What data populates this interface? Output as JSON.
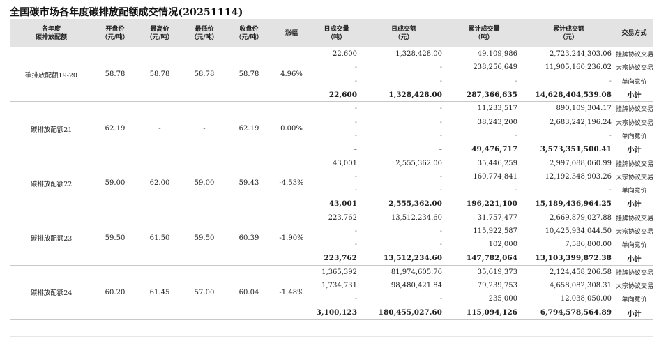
{
  "title": "全国碳市场各年度碳排放配额成交情况(20251114)",
  "headers": [
    [
      "各年度",
      "碳排放配额"
    ],
    [
      "开盘价",
      "（元/吨）"
    ],
    [
      "最高价",
      "（元/吨）"
    ],
    [
      "最低价",
      "（元/吨）"
    ],
    [
      "收盘价",
      "（元/吨）"
    ],
    [
      "涨幅"
    ],
    [
      "日成交量",
      "（吨）"
    ],
    [
      "日成交额",
      "（元）"
    ],
    [
      "累计成交量",
      "（吨）"
    ],
    [
      "累计成交额",
      "（元）"
    ],
    [
      "交易方式"
    ]
  ],
  "groups": [
    {
      "name": "碳排放配额19-20",
      "open": "58.78",
      "high": "58.78",
      "low": "58.78",
      "close": "58.78",
      "change": "4.96%",
      "rows": [
        {
          "vol": "22,600",
          "amt": "1,328,428.00",
          "cvol": "49,109,986",
          "camt": "2,723,244,303.06",
          "mode": "挂牌协议交易"
        },
        {
          "vol": "-",
          "amt": "-",
          "cvol": "238,256,649",
          "camt": "11,905,160,236.02",
          "mode": "大宗协议交易"
        },
        {
          "vol": "-",
          "amt": "-",
          "cvol": "-",
          "camt": "-",
          "mode": "单向竞价"
        },
        {
          "vol": "22,600",
          "amt": "1,328,428.00",
          "cvol": "287,366,635",
          "camt": "14,628,404,539.08",
          "mode": "小计"
        }
      ]
    },
    {
      "name": "碳排放配额21",
      "open": "62.19",
      "high": "-",
      "low": "-",
      "close": "62.19",
      "change": "0.00%",
      "rows": [
        {
          "vol": "-",
          "amt": "-",
          "cvol": "11,233,517",
          "camt": "890,109,304.17",
          "mode": "挂牌协议交易"
        },
        {
          "vol": "-",
          "amt": "-",
          "cvol": "38,243,200",
          "camt": "2,683,242,196.24",
          "mode": "大宗协议交易"
        },
        {
          "vol": "-",
          "amt": "-",
          "cvol": "-",
          "camt": "-",
          "mode": "单向竞价"
        },
        {
          "vol": "-",
          "amt": "-",
          "cvol": "49,476,717",
          "camt": "3,573,351,500.41",
          "mode": "小计"
        }
      ]
    },
    {
      "name": "碳排放配额22",
      "open": "59.00",
      "high": "62.00",
      "low": "59.00",
      "close": "59.43",
      "change": "-4.53%",
      "rows": [
        {
          "vol": "43,001",
          "amt": "2,555,362.00",
          "cvol": "35,446,259",
          "camt": "2,997,088,060.99",
          "mode": "挂牌协议交易"
        },
        {
          "vol": "-",
          "amt": "-",
          "cvol": "160,774,841",
          "camt": "12,192,348,903.26",
          "mode": "大宗协议交易"
        },
        {
          "vol": "-",
          "amt": "-",
          "cvol": "-",
          "camt": "-",
          "mode": "单向竞价"
        },
        {
          "vol": "43,001",
          "amt": "2,555,362.00",
          "cvol": "196,221,100",
          "camt": "15,189,436,964.25",
          "mode": "小计"
        }
      ]
    },
    {
      "name": "碳排放配额23",
      "open": "59.50",
      "high": "61.50",
      "low": "59.50",
      "close": "60.39",
      "change": "-1.90%",
      "rows": [
        {
          "vol": "223,762",
          "amt": "13,512,234.60",
          "cvol": "31,757,477",
          "camt": "2,669,879,027.88",
          "mode": "挂牌协议交易"
        },
        {
          "vol": "-",
          "amt": "-",
          "cvol": "115,922,587",
          "camt": "10,425,934,044.50",
          "mode": "大宗协议交易"
        },
        {
          "vol": "-",
          "amt": "-",
          "cvol": "102,000",
          "camt": "7,586,800.00",
          "mode": "单向竞价"
        },
        {
          "vol": "223,762",
          "amt": "13,512,234.60",
          "cvol": "147,782,064",
          "camt": "13,103,399,872.38",
          "mode": "小计"
        }
      ]
    },
    {
      "name": "碳排放配额24",
      "open": "60.20",
      "high": "61.45",
      "low": "57.00",
      "close": "60.04",
      "change": "-1.48%",
      "rows": [
        {
          "vol": "1,365,392",
          "amt": "81,974,605.76",
          "cvol": "35,619,373",
          "camt": "2,124,458,206.58",
          "mode": "挂牌协议交易"
        },
        {
          "vol": "1,734,731",
          "amt": "98,480,421.84",
          "cvol": "79,239,753",
          "camt": "4,658,082,308.31",
          "mode": "大宗协议交易"
        },
        {
          "vol": "-",
          "amt": "-",
          "cvol": "235,000",
          "camt": "12,038,050.00",
          "mode": "单向竞价"
        },
        {
          "vol": "3,100,123",
          "amt": "180,455,027.60",
          "cvol": "115,094,126",
          "camt": "6,794,578,564.89",
          "mode": "小计"
        }
      ]
    }
  ]
}
